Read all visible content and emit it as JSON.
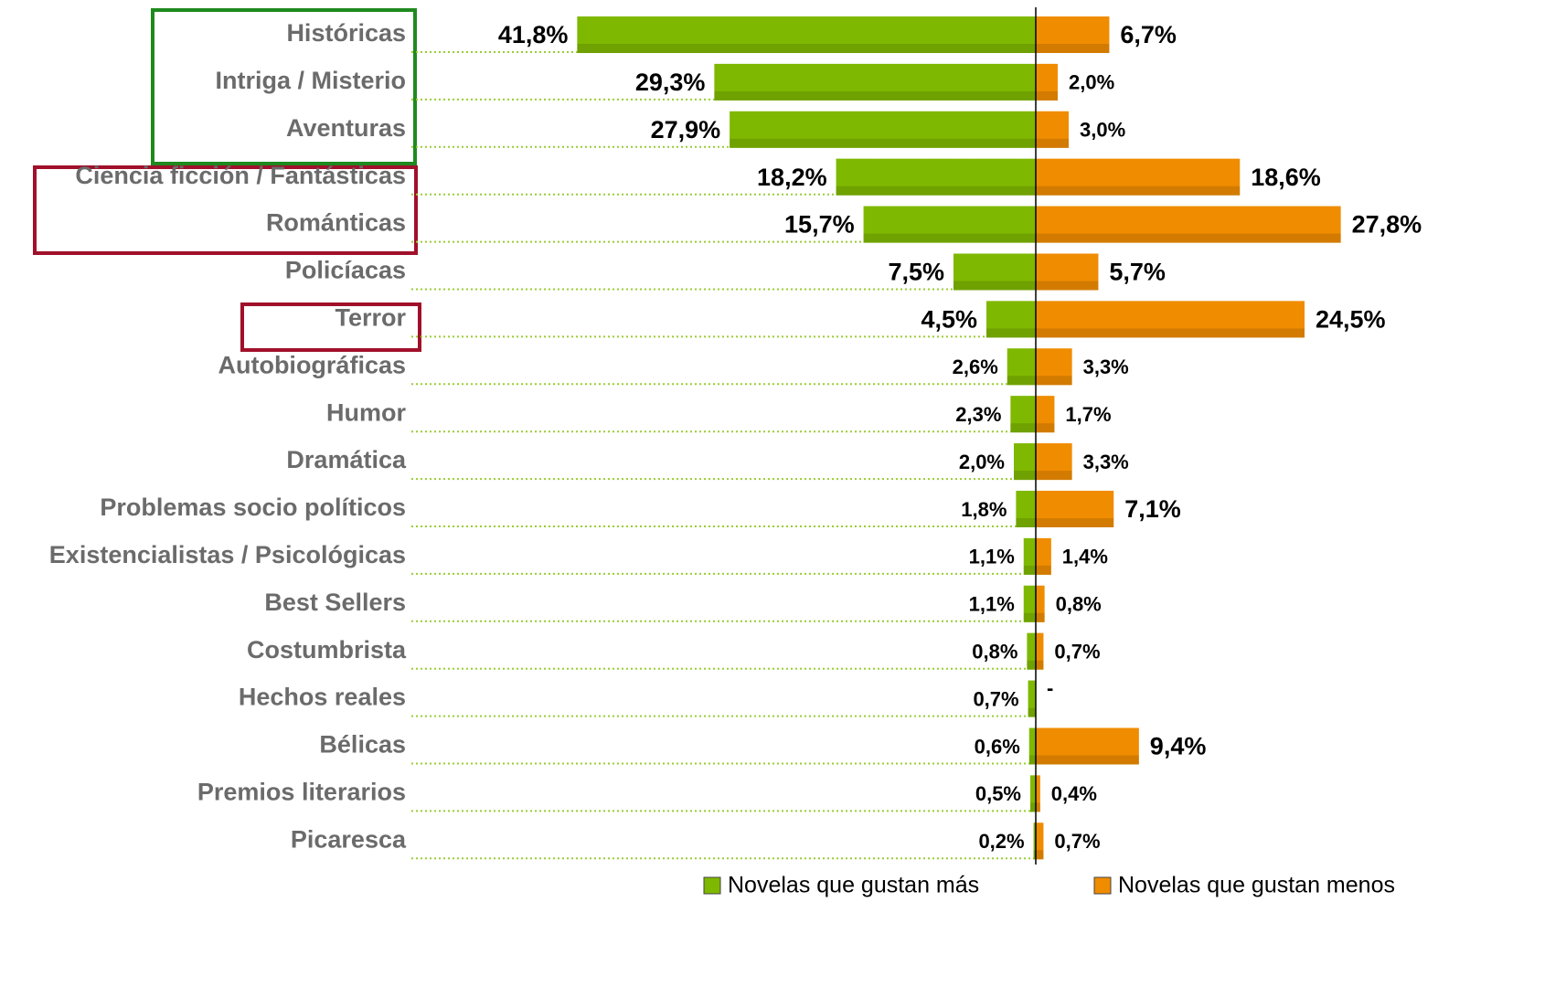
{
  "chart_data": {
    "type": "diverging_bar",
    "categories": [
      "Históricas",
      "Intriga / Misterio",
      "Aventuras",
      "Ciencia ficción / Fantásticas",
      "Románticas",
      "Policíacas",
      "Terror",
      "Autobiográficas",
      "Humor",
      "Dramática",
      "Problemas socio políticos",
      "Existencialistas / Psicológicas",
      "Best Sellers",
      "Costumbrista",
      "Hechos reales",
      "Bélicas",
      "Premios literarios",
      "Picaresca"
    ],
    "series": [
      {
        "name": "Novelas que gustan más",
        "color": "#7fb800",
        "values": [
          41.8,
          29.3,
          27.9,
          18.2,
          15.7,
          7.5,
          4.5,
          2.6,
          2.3,
          2.0,
          1.8,
          1.1,
          1.1,
          0.8,
          0.7,
          0.6,
          0.5,
          0.2
        ],
        "value_labels": [
          "41,8%",
          "29,3%",
          "27,9%",
          "18,2%",
          "15,7%",
          "7,5%",
          "4,5%",
          "2,6%",
          "2,3%",
          "2,0%",
          "1,8%",
          "1,1%",
          "1,1%",
          "0,8%",
          "0,7%",
          "0,6%",
          "0,5%",
          "0,2%"
        ]
      },
      {
        "name": "Novelas que gustan menos",
        "color": "#f08c00",
        "values": [
          6.7,
          2.0,
          3.0,
          18.6,
          27.8,
          5.7,
          24.5,
          3.3,
          1.7,
          3.3,
          7.1,
          1.4,
          0.8,
          0.7,
          null,
          9.4,
          0.4,
          0.7
        ],
        "value_labels": [
          "6,7%",
          "2,0%",
          "3,0%",
          "18,6%",
          "27,8%",
          "5,7%",
          "24,5%",
          "3,3%",
          "1,7%",
          "3,3%",
          "7,1%",
          "1,4%",
          "0,8%",
          "0,7%",
          "-",
          "9,4%",
          "0,4%",
          "0,7%"
        ]
      }
    ]
  }
}
